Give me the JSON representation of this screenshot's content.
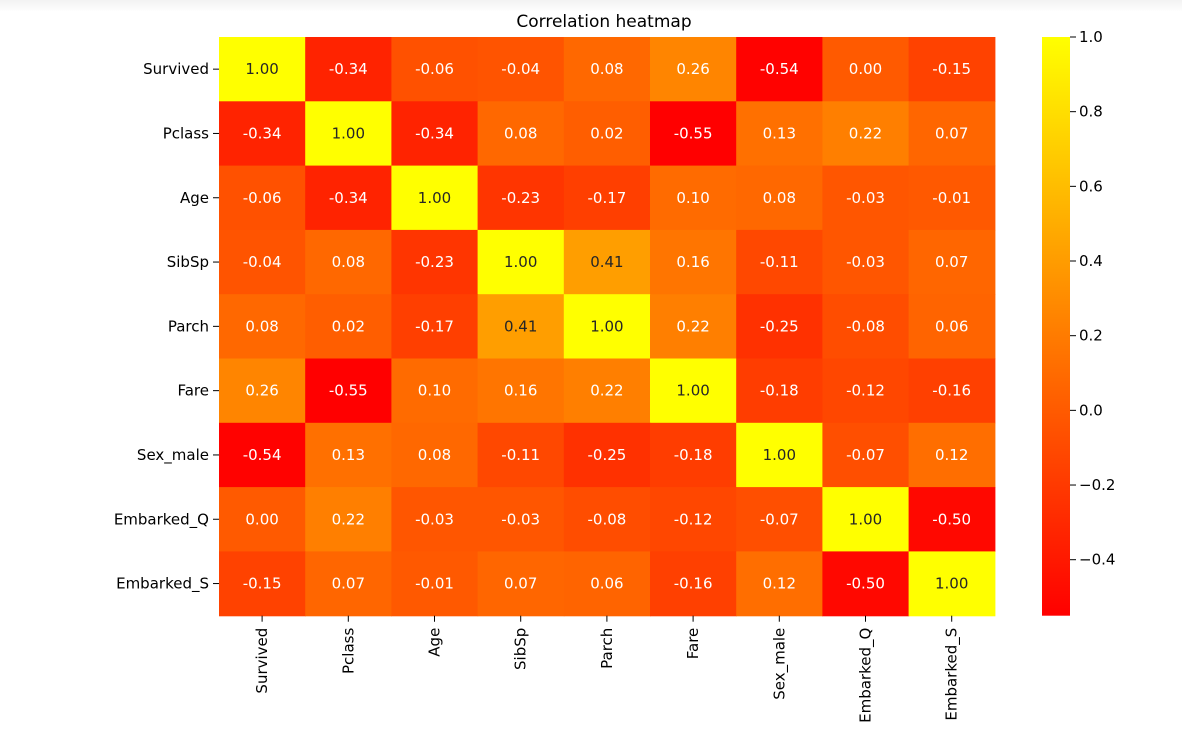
{
  "chart_data": {
    "type": "heatmap",
    "title": "Correlation heatmap",
    "rows": [
      "Survived",
      "Pclass",
      "Age",
      "SibSp",
      "Parch",
      "Fare",
      "Sex_male",
      "Embarked_Q",
      "Embarked_S"
    ],
    "columns": [
      "Survived",
      "Pclass",
      "Age",
      "SibSp",
      "Parch",
      "Fare",
      "Sex_male",
      "Embarked_Q",
      "Embarked_S"
    ],
    "values": [
      [
        1.0,
        -0.34,
        -0.06,
        -0.04,
        0.08,
        0.26,
        -0.54,
        0.0,
        -0.15
      ],
      [
        -0.34,
        1.0,
        -0.34,
        0.08,
        0.02,
        -0.55,
        0.13,
        0.22,
        0.07
      ],
      [
        -0.06,
        -0.34,
        1.0,
        -0.23,
        -0.17,
        0.1,
        0.08,
        -0.03,
        -0.01
      ],
      [
        -0.04,
        0.08,
        -0.23,
        1.0,
        0.41,
        0.16,
        -0.11,
        -0.03,
        0.07
      ],
      [
        0.08,
        0.02,
        -0.17,
        0.41,
        1.0,
        0.22,
        -0.25,
        -0.08,
        0.06
      ],
      [
        0.26,
        -0.55,
        0.1,
        0.16,
        0.22,
        1.0,
        -0.18,
        -0.12,
        -0.16
      ],
      [
        -0.54,
        0.13,
        0.08,
        -0.11,
        -0.25,
        -0.18,
        1.0,
        -0.07,
        0.12
      ],
      [
        0.0,
        0.22,
        -0.03,
        -0.03,
        -0.08,
        -0.12,
        -0.07,
        1.0,
        -0.5
      ],
      [
        -0.15,
        0.07,
        -0.01,
        0.07,
        0.06,
        -0.16,
        0.12,
        -0.5,
        1.0
      ]
    ],
    "annotation_format": "2 decimals",
    "colormap": "autumn",
    "colormap_low": "#ff0000",
    "colormap_high": "#ffff00",
    "vmin": -0.55,
    "vmax": 1.0,
    "colorbar": {
      "ticks": [
        1.0,
        0.8,
        0.6,
        0.4,
        0.2,
        0.0,
        -0.2,
        -0.4
      ],
      "tick_labels": [
        "1.0",
        "0.8",
        "0.6",
        "0.4",
        "0.2",
        "0.0",
        "−0.2",
        "−0.4"
      ],
      "placement": "right"
    }
  }
}
